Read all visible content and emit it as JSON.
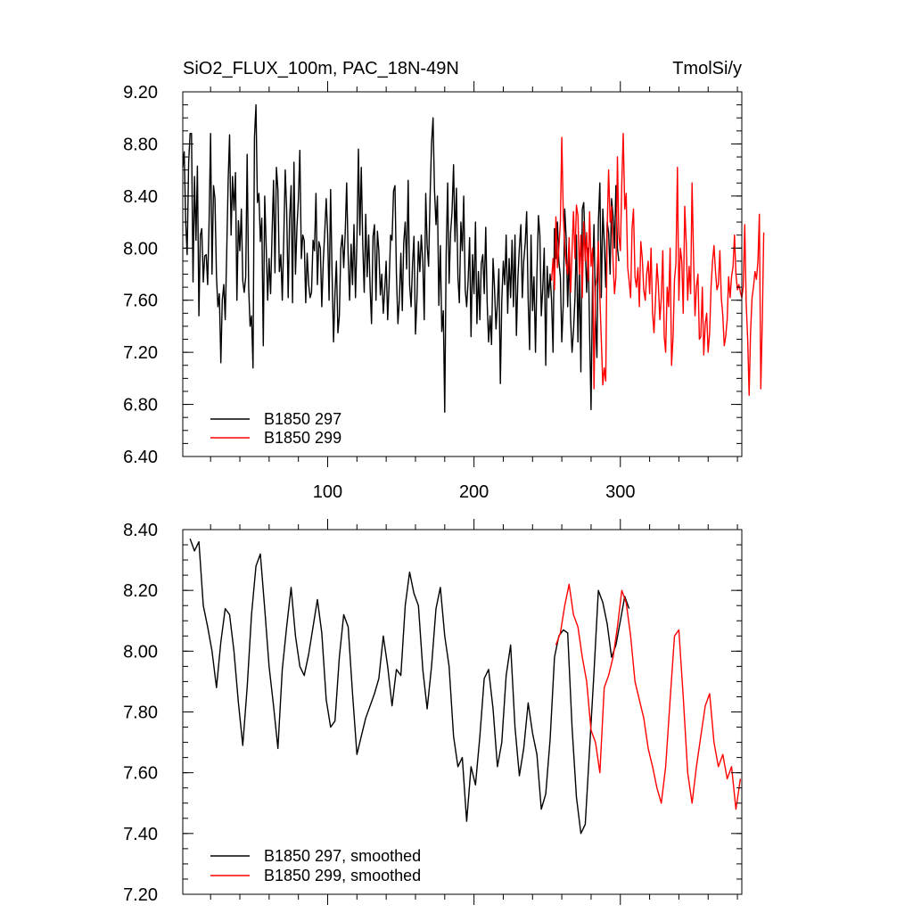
{
  "chart_data": [
    {
      "type": "line",
      "title_left": "SiO2_FLUX_100m, PAC_18N-49N",
      "title_right": "TmolSi/y",
      "xlabel": "",
      "ylabel": "",
      "xlim": [
        1,
        383
      ],
      "ylim": [
        6.4,
        9.2
      ],
      "yticks": [
        "6.40",
        "6.80",
        "7.20",
        "7.60",
        "8.00",
        "8.40",
        "8.80",
        "9.20"
      ],
      "xticks": [
        "100",
        "200",
        "300"
      ],
      "legend_position": "bottom-left",
      "series": [
        {
          "name": "B1850 297",
          "color": "#000000",
          "x_start": 1,
          "values": [
            8.62,
            8.74,
            8.2,
            7.95,
            8.66,
            8.88,
            8.88,
            7.74,
            8.55,
            8.06,
            8.63,
            7.48,
            8.1,
            8.15,
            7.74,
            7.94,
            7.95,
            7.72,
            8.2,
            8.88,
            7.8,
            8.48,
            8.38,
            7.78,
            7.55,
            7.65,
            7.12,
            7.6,
            7.72,
            7.45,
            7.94,
            8.52,
            8.87,
            8.1,
            8.55,
            8.29,
            8.58,
            7.6,
            8.21,
            7.98,
            8.3,
            7.75,
            7.66,
            7.78,
            8.72,
            7.7,
            7.4,
            7.48,
            7.08,
            8.85,
            9.1,
            8.35,
            8.42,
            8.05,
            8.23,
            7.25,
            8.4,
            8.0,
            7.6,
            7.92,
            7.65,
            8.1,
            8.52,
            7.81,
            8.62,
            8.45,
            7.82,
            7.95,
            7.6,
            8.08,
            8.6,
            8.3,
            7.62,
            8.22,
            8.48,
            7.58,
            8.66,
            7.8,
            8.15,
            8.38,
            8.75,
            7.92,
            8.1,
            8.06,
            7.58,
            7.96,
            7.72,
            7.62,
            7.66,
            8.06,
            7.98,
            8.42,
            7.72,
            8.05,
            8.0,
            7.55,
            7.9,
            8.12,
            8.38,
            8.1,
            7.6,
            8.45,
            7.82,
            7.28,
            7.65,
            7.9,
            7.35,
            7.48,
            8.0,
            8.1,
            7.85,
            8.12,
            8.5,
            7.94,
            7.6,
            8.03,
            7.72,
            8.18,
            7.62,
            8.05,
            8.76,
            8.1,
            8.62,
            8.02,
            7.66,
            8.26,
            7.78,
            8.1,
            7.7,
            7.42,
            8.09,
            8.18,
            7.6,
            8.13,
            7.98,
            7.64,
            7.8,
            7.5,
            7.68,
            7.9,
            7.45,
            7.72,
            8.1,
            8.06,
            8.44,
            8.48,
            7.8,
            7.42,
            7.6,
            7.96,
            7.52,
            8.04,
            8.2,
            7.84,
            8.52,
            7.72,
            7.55,
            7.88,
            8.09,
            7.34,
            7.6,
            8.05,
            7.82,
            8.1,
            7.9,
            7.45,
            8.42,
            8.02,
            7.86,
            8.4,
            8.8,
            9.0,
            8.45,
            8.18,
            8.4,
            7.56,
            8.02,
            7.36,
            7.52,
            6.74,
            7.95,
            8.5,
            7.73,
            8.12,
            8.28,
            8.64,
            8.05,
            8.46,
            7.78,
            7.58,
            8.2,
            7.98,
            8.4,
            7.68,
            7.55,
            7.76,
            8.08,
            7.32,
            7.95,
            7.65,
            8.2,
            7.42,
            7.82,
            7.45,
            7.88,
            7.95,
            7.65,
            8.16,
            7.58,
            7.28,
            7.48,
            7.26,
            7.92,
            7.7,
            7.38,
            7.58,
            7.84,
            6.96,
            7.6,
            7.9,
            7.72,
            8.1,
            7.5,
            7.92,
            7.62,
            8.06,
            7.55,
            8.1,
            7.33,
            7.78,
            8.0,
            8.18,
            7.62,
            7.9,
            8.04,
            8.28,
            7.6,
            7.22,
            8.1,
            7.52,
            7.78,
            7.2,
            7.8,
            8.25,
            8.1,
            7.48,
            7.7,
            8.0,
            7.1,
            7.86,
            7.62,
            7.8,
            7.6,
            7.2,
            8.15,
            7.92,
            8.2,
            7.9,
            7.78,
            7.28,
            7.58,
            8.3,
            8.08,
            7.55,
            7.95,
            7.45,
            7.2,
            7.36,
            7.62,
            8.1,
            7.28,
            7.84,
            7.05,
            8.3,
            8.35,
            8.0,
            7.66,
            8.0,
            7.35,
            6.76,
            7.78,
            8.18,
            7.46,
            7.16,
            8.2,
            8.5,
            7.62,
            8.3,
            8.05,
            7.7,
            8.2,
            8.12,
            7.8,
            8.38,
            8.25,
            8.0,
            8.48,
            8.0,
            7.9
          ]
        },
        {
          "name": "B1850 299",
          "color": "#ff0000",
          "x_start": 253,
          "values": [
            7.75,
            7.92,
            7.68,
            8.24,
            7.85,
            8.0,
            8.2,
            8.85,
            8.25,
            8.02,
            7.88,
            7.8,
            8.08,
            7.66,
            7.98,
            8.28,
            7.92,
            8.33,
            8.25,
            7.8,
            8.1,
            7.62,
            8.2,
            7.9,
            8.12,
            7.75,
            8.28,
            7.86,
            8.0,
            6.92,
            7.7,
            7.78,
            8.05,
            7.62,
            7.3,
            6.95,
            7.08,
            6.98,
            8.15,
            8.6,
            8.2,
            8.32,
            7.9,
            7.65,
            7.78,
            8.7,
            8.1,
            7.98,
            8.5,
            8.88,
            8.3,
            8.42,
            7.85,
            7.75,
            7.62,
            8.15,
            8.3,
            7.78,
            7.7,
            7.85,
            7.55,
            8.05,
            7.92,
            7.68,
            7.6,
            7.8,
            7.9,
            7.65,
            8.0,
            7.5,
            7.35,
            7.6,
            7.88,
            7.72,
            7.45,
            7.62,
            7.98,
            7.32,
            7.2,
            7.7,
            7.55,
            8.0,
            7.1,
            7.32,
            7.76,
            7.88,
            8.62,
            7.6,
            8.0,
            7.9,
            7.5,
            8.32,
            8.05,
            7.6,
            7.86,
            7.65,
            8.5,
            7.95,
            7.48,
            7.7,
            7.8,
            7.3,
            7.32,
            7.7,
            7.18,
            7.42,
            7.5,
            7.2,
            7.35,
            7.7,
            7.9,
            8.02,
            7.82,
            7.68,
            7.72,
            7.98,
            7.62,
            7.48,
            7.25,
            7.32,
            7.45,
            7.78,
            7.62,
            7.78,
            7.86,
            8.1,
            7.8,
            7.68,
            7.72,
            7.66,
            7.62,
            7.7,
            8.18,
            7.58,
            7.3,
            6.87,
            7.35,
            7.62,
            7.7,
            7.82,
            7.76,
            7.9,
            8.26,
            6.92,
            7.45,
            8.12
          ]
        }
      ]
    },
    {
      "type": "line",
      "title": "",
      "xlabel": "",
      "ylabel": "",
      "xlim": [
        1,
        383
      ],
      "ylim": [
        7.2,
        8.4
      ],
      "yticks": [
        "7.20",
        "7.40",
        "7.60",
        "7.80",
        "8.00",
        "8.20",
        "8.40"
      ],
      "xticks": [],
      "legend_position": "bottom-left",
      "series": [
        {
          "name": "B1850 297, smoothed",
          "color": "#000000",
          "x": [
            6,
            9,
            12,
            15,
            18,
            21,
            24,
            27,
            30,
            33,
            36,
            39,
            42,
            45,
            48,
            51,
            54,
            57,
            60,
            63,
            66,
            69,
            72,
            75,
            78,
            81,
            84,
            87,
            90,
            93,
            96,
            99,
            102,
            105,
            108,
            111,
            114,
            117,
            120,
            123,
            126,
            129,
            132,
            135,
            138,
            141,
            144,
            147,
            150,
            153,
            156,
            159,
            162,
            165,
            168,
            171,
            174,
            177,
            180,
            183,
            186,
            189,
            192,
            195,
            198,
            201,
            204,
            207,
            210,
            213,
            216,
            219,
            222,
            225,
            228,
            231,
            234,
            237,
            240,
            243,
            246,
            249,
            252,
            255,
            258,
            261,
            264,
            267,
            270,
            273,
            276,
            279,
            282,
            285,
            288,
            291,
            294,
            297,
            300,
            303,
            306
          ],
          "values": [
            8.37,
            8.33,
            8.36,
            8.15,
            8.08,
            8.0,
            7.88,
            8.03,
            8.14,
            8.12,
            8.0,
            7.83,
            7.69,
            7.88,
            8.12,
            8.28,
            8.32,
            8.14,
            7.95,
            7.82,
            7.68,
            7.94,
            8.08,
            8.21,
            8.05,
            7.95,
            7.92,
            7.99,
            8.08,
            8.17,
            8.06,
            7.84,
            7.75,
            7.77,
            7.98,
            8.12,
            8.08,
            7.86,
            7.66,
            7.72,
            7.78,
            7.82,
            7.86,
            7.91,
            8.05,
            7.95,
            7.82,
            7.94,
            7.92,
            8.15,
            8.26,
            8.19,
            8.15,
            7.94,
            7.81,
            7.95,
            8.14,
            8.21,
            8.05,
            7.95,
            7.72,
            7.62,
            7.65,
            7.44,
            7.62,
            7.56,
            7.72,
            7.91,
            7.94,
            7.81,
            7.62,
            7.7,
            7.92,
            8.02,
            7.75,
            7.59,
            7.68,
            7.83,
            7.73,
            7.66,
            7.48,
            7.53,
            7.71,
            7.98,
            8.05,
            8.07,
            8.06,
            7.75,
            7.52,
            7.4,
            7.43,
            7.68,
            7.93,
            8.2,
            8.16,
            8.09,
            7.98,
            8.02,
            8.1,
            8.18,
            8.14
          ]
        },
        {
          "name": "B1850 299, smoothed",
          "color": "#ff0000",
          "x": [
            256,
            259,
            262,
            265,
            268,
            271,
            274,
            277,
            280,
            283,
            286,
            289,
            292,
            295,
            298,
            301,
            304,
            307,
            310,
            313,
            316,
            319,
            322,
            325,
            328,
            331,
            334,
            337,
            340,
            343,
            346,
            349,
            352,
            355,
            358,
            361,
            364,
            367,
            370,
            373,
            376,
            379,
            382
          ],
          "values": [
            8.02,
            8.06,
            8.15,
            8.22,
            8.12,
            8.08,
            7.98,
            7.9,
            7.74,
            7.7,
            7.6,
            7.88,
            7.92,
            7.98,
            8.08,
            8.2,
            8.16,
            8.05,
            7.9,
            7.84,
            7.78,
            7.68,
            7.62,
            7.55,
            7.5,
            7.62,
            7.84,
            8.05,
            8.07,
            7.85,
            7.6,
            7.5,
            7.62,
            7.72,
            7.82,
            7.86,
            7.7,
            7.62,
            7.66,
            7.58,
            7.62,
            7.48,
            7.58
          ]
        }
      ]
    }
  ]
}
